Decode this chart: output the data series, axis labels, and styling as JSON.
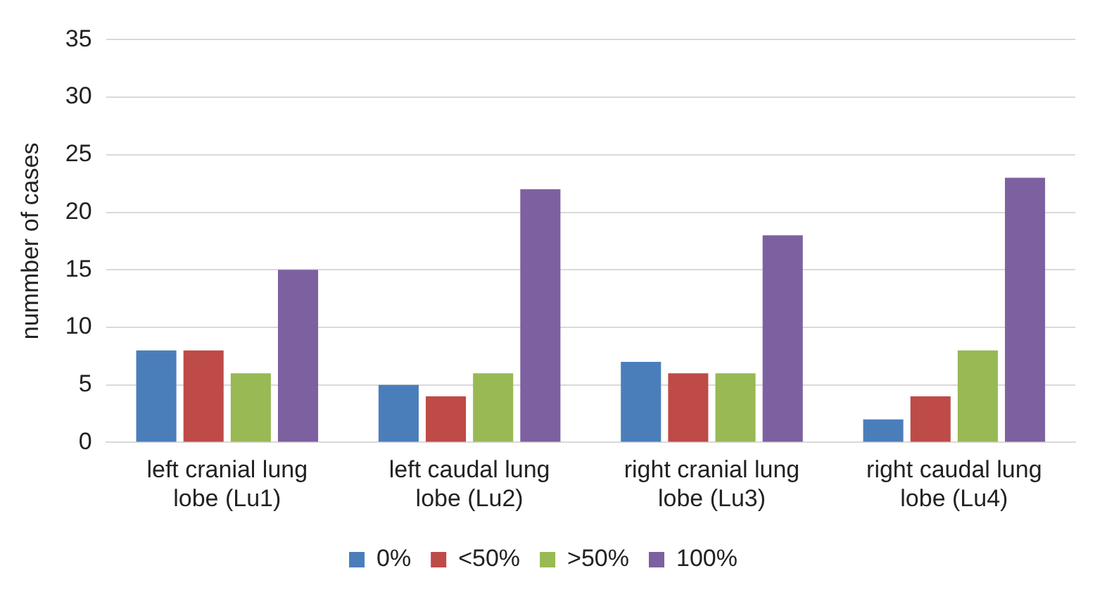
{
  "chart_data": {
    "type": "bar",
    "ylabel": "nummber of cases",
    "categories": [
      "left cranial lung lobe (Lu1)",
      "left caudal lung lobe (Lu2)",
      "right cranial lung lobe (Lu3)",
      "right caudal lung lobe (Lu4)"
    ],
    "series": [
      {
        "name": "0%",
        "color": "#4a7ebb",
        "values": [
          8,
          5,
          7,
          2
        ]
      },
      {
        "name": "<50%",
        "color": "#be4b48",
        "values": [
          8,
          4,
          6,
          4
        ]
      },
      {
        "name": ">50%",
        "color": "#98b954",
        "values": [
          6,
          6,
          6,
          8
        ]
      },
      {
        "name": "100%",
        "color": "#7d60a0",
        "values": [
          15,
          22,
          18,
          23
        ]
      }
    ],
    "ylim": [
      0,
      35
    ],
    "yticks": [
      0,
      5,
      10,
      15,
      20,
      25,
      30,
      35
    ],
    "grid": "y",
    "legend": "bottom"
  }
}
